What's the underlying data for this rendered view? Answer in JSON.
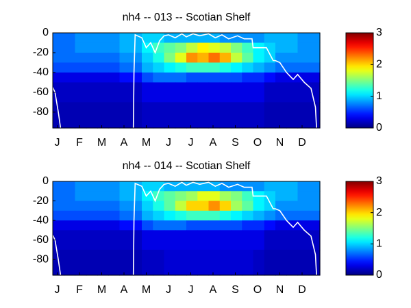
{
  "chart_data": [
    {
      "type": "heatmap",
      "title": "nh4 -- 013 -- Scotian Shelf",
      "colormap": "jet",
      "xlim": [
        0,
        12
      ],
      "xticks": [
        {
          "value": 0.2,
          "label": "J"
        },
        {
          "value": 1.2,
          "label": "F"
        },
        {
          "value": 2.2,
          "label": "M"
        },
        {
          "value": 3.2,
          "label": "A"
        },
        {
          "value": 4.2,
          "label": "M"
        },
        {
          "value": 5.2,
          "label": "J"
        },
        {
          "value": 6.2,
          "label": "J"
        },
        {
          "value": 7.2,
          "label": "A"
        },
        {
          "value": 8.2,
          "label": "S"
        },
        {
          "value": 9.2,
          "label": "O"
        },
        {
          "value": 10.2,
          "label": "N"
        },
        {
          "value": 11.2,
          "label": "D"
        }
      ],
      "ylim": [
        -96,
        0
      ],
      "yticks": [
        0,
        -20,
        -40,
        -60,
        -80
      ],
      "clim": [
        0,
        3
      ],
      "cticks": [
        0,
        1,
        2,
        3
      ],
      "x_edges": [
        0,
        0.5,
        1,
        1.5,
        2,
        2.5,
        3,
        3.5,
        4,
        4.5,
        5,
        5.5,
        6,
        6.5,
        7,
        7.5,
        8,
        8.5,
        9,
        9.5,
        10,
        10.5,
        11,
        11.5,
        12
      ],
      "y_edges": [
        0,
        -10,
        -20,
        -30,
        -40,
        -50,
        -70,
        -96
      ],
      "z": [
        [
          0.7,
          0.7,
          0.8,
          0.8,
          0.8,
          0.8,
          0.9,
          0.9,
          1.0,
          1.0,
          0.9,
          0.9,
          0.9,
          0.9,
          0.9,
          0.8,
          0.8,
          0.8,
          0.8,
          0.9,
          0.9,
          0.9,
          0.8,
          0.8
        ],
        [
          0.7,
          0.7,
          0.8,
          0.8,
          0.8,
          0.8,
          0.9,
          0.9,
          1.1,
          1.3,
          1.4,
          1.5,
          1.7,
          1.9,
          1.8,
          1.7,
          1.5,
          1.3,
          1.1,
          1.0,
          0.9,
          0.9,
          0.8,
          0.8
        ],
        [
          0.7,
          0.7,
          0.7,
          0.7,
          0.7,
          0.7,
          0.8,
          0.8,
          1.0,
          1.2,
          1.5,
          1.8,
          2.2,
          2.1,
          2.3,
          2.1,
          1.7,
          1.4,
          1.1,
          1.0,
          0.8,
          0.8,
          0.8,
          0.8
        ],
        [
          0.6,
          0.6,
          0.6,
          0.6,
          0.6,
          0.6,
          0.7,
          0.7,
          0.9,
          1.0,
          1.1,
          1.2,
          1.3,
          1.3,
          1.3,
          1.2,
          1.1,
          1.0,
          0.9,
          0.8,
          0.7,
          0.7,
          0.7,
          0.7
        ],
        [
          0.3,
          0.3,
          0.3,
          0.3,
          0.3,
          0.3,
          0.4,
          0.4,
          0.6,
          0.7,
          0.7,
          0.7,
          0.6,
          0.6,
          0.6,
          0.6,
          0.6,
          0.5,
          0.5,
          0.4,
          0.3,
          0.3,
          0.3,
          0.3
        ],
        [
          0.2,
          0.2,
          0.2,
          0.2,
          0.2,
          0.2,
          0.2,
          0.2,
          0.3,
          0.3,
          0.3,
          0.3,
          0.3,
          0.3,
          0.3,
          0.3,
          0.3,
          0.3,
          0.3,
          0.2,
          0.2,
          0.2,
          0.2,
          0.2
        ],
        [
          0.15,
          0.15,
          0.15,
          0.15,
          0.15,
          0.15,
          0.15,
          0.15,
          0.2,
          0.2,
          0.2,
          0.2,
          0.2,
          0.2,
          0.2,
          0.2,
          0.2,
          0.2,
          0.2,
          0.15,
          0.15,
          0.15,
          0.15,
          0.15
        ]
      ],
      "line": {
        "color": "#ffffff",
        "x": [
          0,
          0.1,
          0.25,
          0.35,
          null,
          3.62,
          3.65,
          3.7,
          4.0,
          4.2,
          4.4,
          4.6,
          4.8,
          5.0,
          5.2,
          5.5,
          5.8,
          6.0,
          6.3,
          6.6,
          7.0,
          7.3,
          7.6,
          7.9,
          8.3,
          8.6,
          8.95,
          9.0,
          9.4,
          9.6,
          9.9,
          10.0,
          10.2,
          10.5,
          10.8,
          11.0,
          11.3,
          11.6,
          11.8,
          11.85
        ],
        "values": [
          -55,
          -60,
          -80,
          -96,
          null,
          -96,
          -40,
          -2,
          -5,
          -15,
          -10,
          -20,
          -8,
          -3,
          -2,
          -5,
          -1,
          -4,
          -1,
          -3,
          -1,
          -5,
          -2,
          -6,
          -3,
          -6,
          -6,
          -15,
          -15,
          -15,
          -28,
          -28,
          -30,
          -40,
          -47,
          -42,
          -50,
          -56,
          -75,
          -96
        ]
      }
    },
    {
      "type": "heatmap",
      "title": "nh4 -- 014 -- Scotian Shelf",
      "colormap": "jet",
      "xlim": [
        0,
        12
      ],
      "xticks": [
        {
          "value": 0.2,
          "label": "J"
        },
        {
          "value": 1.2,
          "label": "F"
        },
        {
          "value": 2.2,
          "label": "M"
        },
        {
          "value": 3.2,
          "label": "A"
        },
        {
          "value": 4.2,
          "label": "M"
        },
        {
          "value": 5.2,
          "label": "J"
        },
        {
          "value": 6.2,
          "label": "J"
        },
        {
          "value": 7.2,
          "label": "A"
        },
        {
          "value": 8.2,
          "label": "S"
        },
        {
          "value": 9.2,
          "label": "O"
        },
        {
          "value": 10.2,
          "label": "N"
        },
        {
          "value": 11.2,
          "label": "D"
        }
      ],
      "ylim": [
        -96,
        0
      ],
      "yticks": [
        0,
        -20,
        -40,
        -60,
        -80
      ],
      "clim": [
        0,
        3
      ],
      "cticks": [
        0,
        1,
        2,
        3
      ],
      "x_edges": [
        0,
        0.5,
        1,
        1.5,
        2,
        2.5,
        3,
        3.5,
        4,
        4.5,
        5,
        5.5,
        6,
        6.5,
        7,
        7.5,
        8,
        8.5,
        9,
        9.5,
        10,
        10.5,
        11,
        11.5,
        12
      ],
      "y_edges": [
        0,
        -10,
        -20,
        -30,
        -40,
        -50,
        -70,
        -96
      ],
      "z": [
        [
          0.7,
          0.7,
          0.8,
          0.8,
          0.8,
          0.8,
          0.9,
          0.9,
          1.0,
          1.0,
          0.9,
          0.9,
          0.9,
          0.9,
          0.9,
          0.8,
          0.8,
          0.8,
          0.8,
          0.9,
          0.9,
          0.9,
          0.8,
          0.8
        ],
        [
          0.7,
          0.7,
          0.8,
          0.8,
          0.8,
          0.8,
          0.9,
          0.9,
          1.1,
          1.3,
          1.4,
          1.5,
          1.6,
          1.8,
          1.8,
          1.6,
          1.5,
          1.3,
          1.1,
          1.0,
          0.9,
          0.9,
          0.8,
          0.8
        ],
        [
          0.7,
          0.7,
          0.7,
          0.7,
          0.7,
          0.7,
          0.8,
          0.8,
          1.0,
          1.2,
          1.4,
          1.7,
          2.0,
          2.0,
          2.2,
          2.0,
          1.6,
          1.4,
          1.1,
          1.0,
          0.8,
          0.8,
          0.8,
          0.8
        ],
        [
          0.6,
          0.6,
          0.6,
          0.6,
          0.6,
          0.6,
          0.7,
          0.7,
          0.9,
          1.0,
          1.1,
          1.2,
          1.3,
          1.3,
          1.3,
          1.2,
          1.1,
          1.0,
          0.9,
          0.8,
          0.7,
          0.7,
          0.7,
          0.7
        ],
        [
          0.3,
          0.3,
          0.3,
          0.3,
          0.3,
          0.3,
          0.4,
          0.4,
          0.6,
          0.7,
          0.7,
          0.7,
          0.6,
          0.6,
          0.6,
          0.6,
          0.6,
          0.5,
          0.5,
          0.4,
          0.3,
          0.3,
          0.3,
          0.3
        ],
        [
          0.2,
          0.2,
          0.2,
          0.2,
          0.2,
          0.2,
          0.2,
          0.2,
          0.3,
          0.3,
          0.3,
          0.3,
          0.3,
          0.3,
          0.3,
          0.3,
          0.3,
          0.3,
          0.3,
          0.2,
          0.2,
          0.2,
          0.2,
          0.2
        ],
        [
          0.15,
          0.15,
          0.15,
          0.15,
          0.15,
          0.15,
          0.15,
          0.15,
          0.2,
          0.2,
          0.25,
          0.25,
          0.25,
          0.25,
          0.25,
          0.25,
          0.25,
          0.25,
          0.2,
          0.15,
          0.15,
          0.15,
          0.15,
          0.15
        ]
      ],
      "line": {
        "color": "#ffffff",
        "x": [
          0,
          0.1,
          0.25,
          0.35,
          null,
          3.62,
          3.65,
          3.7,
          4.0,
          4.2,
          4.4,
          4.6,
          4.8,
          5.0,
          5.2,
          5.5,
          5.8,
          6.0,
          6.3,
          6.6,
          7.0,
          7.3,
          7.6,
          7.9,
          8.3,
          8.6,
          8.95,
          9.0,
          9.4,
          9.6,
          9.9,
          10.0,
          10.2,
          10.5,
          10.8,
          11.0,
          11.3,
          11.6,
          11.8,
          11.85
        ],
        "values": [
          -55,
          -60,
          -80,
          -96,
          null,
          -96,
          -40,
          -2,
          -5,
          -15,
          -10,
          -20,
          -8,
          -3,
          -2,
          -5,
          -1,
          -4,
          -1,
          -3,
          -1,
          -5,
          -2,
          -6,
          -3,
          -6,
          -6,
          -15,
          -15,
          -15,
          -28,
          -28,
          -30,
          -40,
          -47,
          -42,
          -50,
          -56,
          -75,
          -96
        ]
      }
    }
  ]
}
